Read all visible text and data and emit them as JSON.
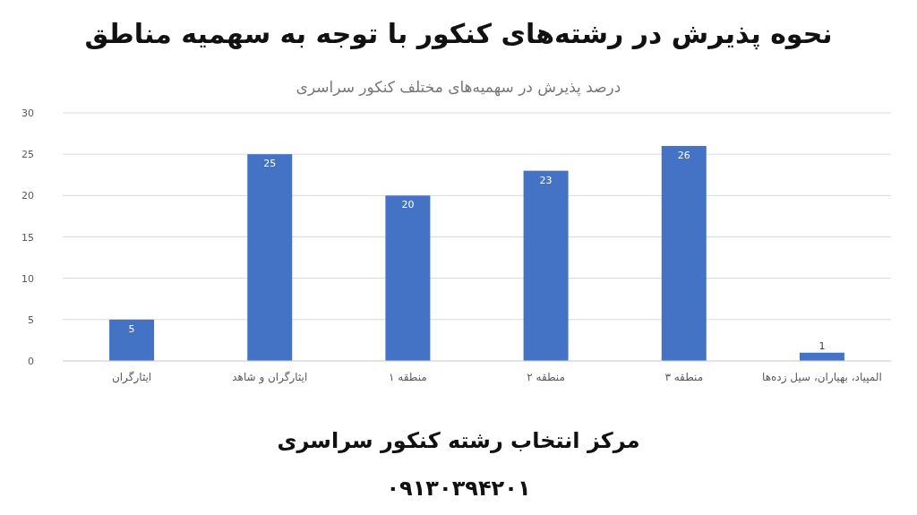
{
  "chart_data": {
    "type": "bar",
    "title": "نحوه پذیرش در رشته‌های کنکور با توجه به سهمیه مناطق",
    "subtitle": "درصد پذیرش در سهمیه‌های مختلف کنکور سراسری",
    "categories": [
      "ایثارگران",
      "ایثارگران و شاهد",
      "منطقه ۱",
      "منطقه ۲",
      "منطقه ۳",
      "المپیاد، بهیاران، سیل زده‌ها"
    ],
    "values": [
      5,
      25,
      20,
      23,
      26,
      1
    ],
    "color": "#4472c4",
    "ylim": [
      0,
      30
    ],
    "yticks": [
      0,
      5,
      10,
      15,
      20,
      25,
      30
    ],
    "grid": "y",
    "data_labels": true,
    "annotations": [
      "مرکز انتخاب رشته کنکور سراسری",
      "۰۹۱۳۰۳۹۴۲۰۱"
    ]
  }
}
